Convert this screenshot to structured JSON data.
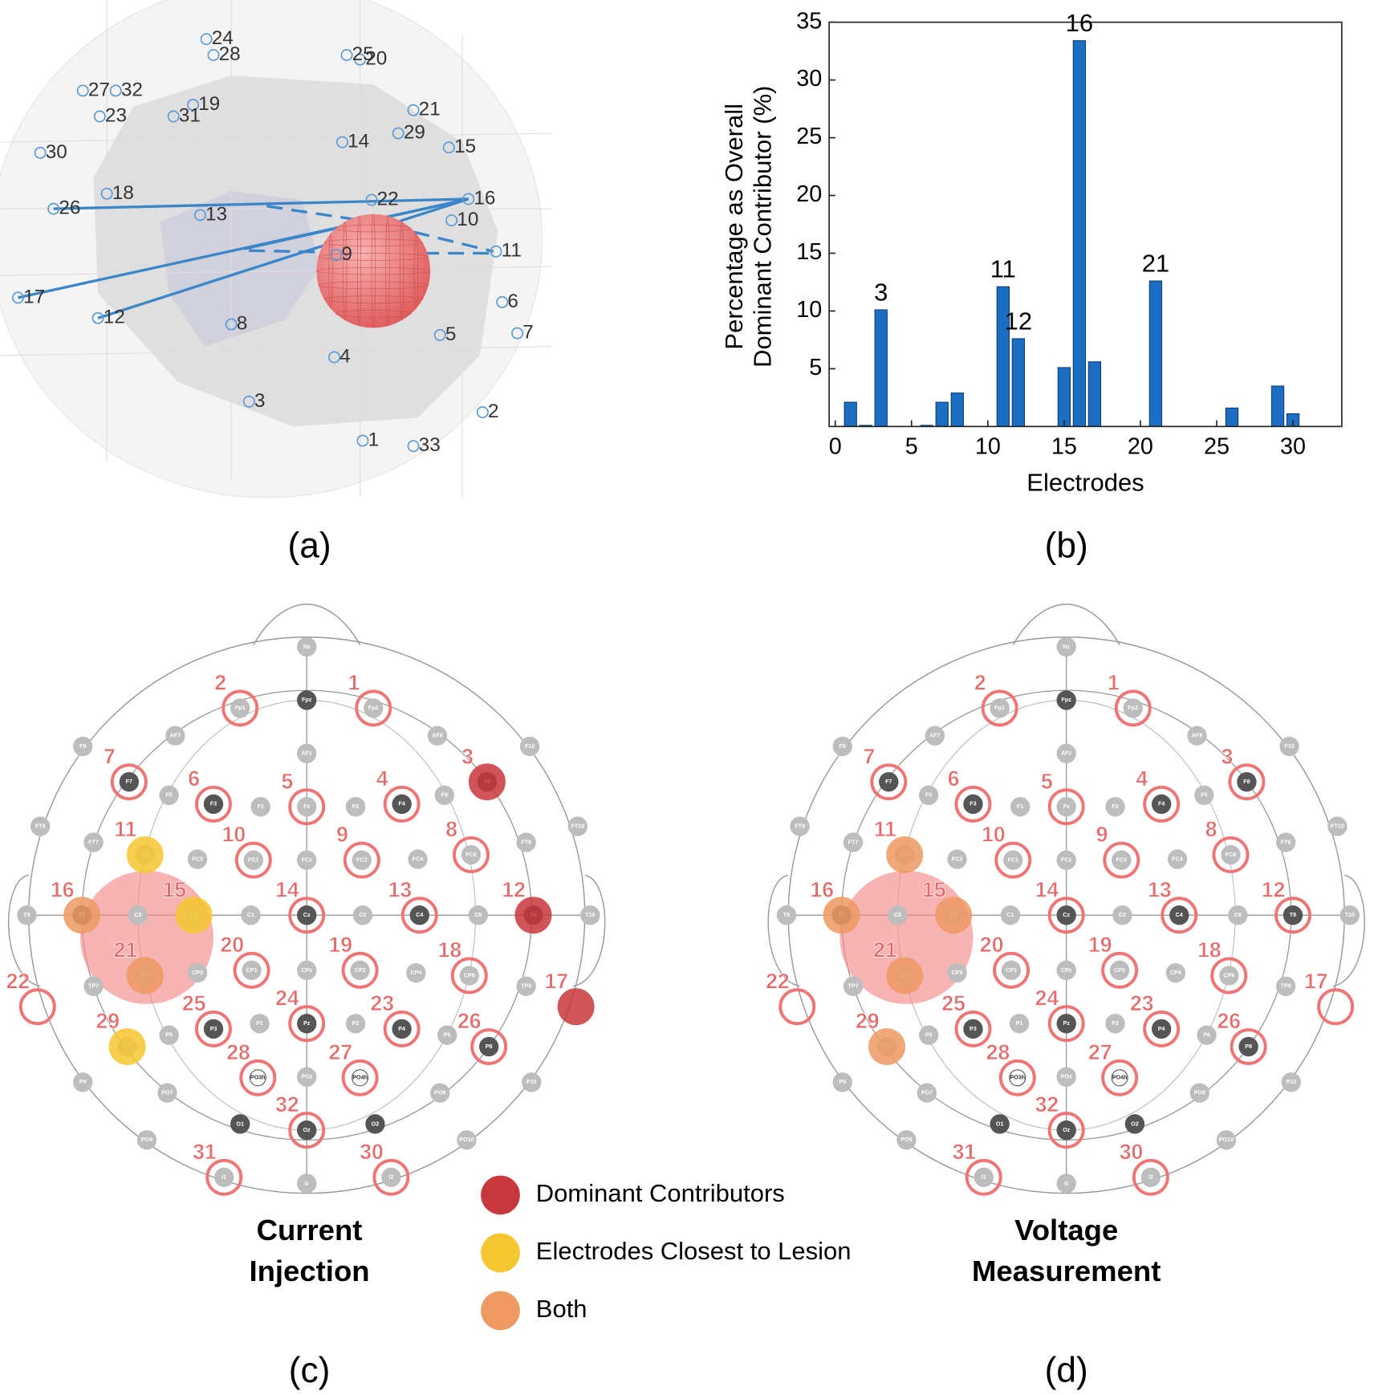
{
  "panel_labels": [
    "(a)",
    "(b)",
    "(c)",
    "(d)"
  ],
  "electrodes": [
    1,
    2,
    3,
    4,
    5,
    6,
    7,
    8,
    9,
    10,
    11,
    12,
    13,
    14,
    15,
    16,
    17,
    18,
    19,
    20,
    21,
    22,
    23,
    24,
    25,
    26,
    27,
    28,
    29,
    30,
    31,
    32,
    33
  ],
  "chart_data": {
    "type": "bar",
    "ylabel": [
      "Percentage as Overall",
      "Dominant Contributor (%)"
    ],
    "xlabel": "Electrodes",
    "x": [
      1,
      2,
      3,
      6,
      7,
      8,
      11,
      12,
      15,
      16,
      17,
      21,
      26,
      29,
      30
    ],
    "values": [
      2.1,
      0.1,
      10.1,
      0.1,
      2.1,
      2.9,
      12.1,
      7.6,
      5.1,
      33.4,
      5.6,
      12.6,
      1.6,
      3.5,
      1.1
    ],
    "color": "#1b6ec2",
    "xlim": [
      -0.4,
      33.2
    ],
    "ylim": [
      0,
      35
    ],
    "xticks": [
      0,
      5,
      10,
      15,
      20,
      25,
      30
    ],
    "yticks": [
      5,
      10,
      15,
      20,
      25,
      30,
      35
    ],
    "annotations": [
      {
        "label": "3",
        "x": 3
      },
      {
        "label": "11",
        "x": 11
      },
      {
        "label": "12",
        "x": 12
      },
      {
        "label": "16",
        "x": 16
      },
      {
        "label": "21",
        "x": 21
      }
    ]
  },
  "eeg_sites": [
    "Nz",
    "Fpz",
    "Fp1",
    "Fp2",
    "AF7",
    "AFz",
    "AF8",
    "F9",
    "F7",
    "F5",
    "F3",
    "F1",
    "Fz",
    "F2",
    "F4",
    "F6",
    "F8",
    "F10",
    "FT9",
    "FT7",
    "FC5",
    "FC3",
    "FC1",
    "FCz",
    "FC2",
    "FC4",
    "FC6",
    "FT8",
    "FT10",
    "T9",
    "T7",
    "C5",
    "C3",
    "C1",
    "Cz",
    "C2",
    "C4",
    "C6",
    "T8",
    "T10",
    "TP7",
    "CP5",
    "CP3",
    "CP1",
    "CPz",
    "CP2",
    "CP4",
    "CP6",
    "TP8",
    "P9",
    "P7",
    "P5",
    "P3",
    "P1",
    "Pz",
    "P2",
    "P4",
    "P6",
    "P8",
    "P10",
    "PO7",
    "PO3h",
    "POz",
    "PO4h",
    "PO8",
    "PO9",
    "O1",
    "Oz",
    "O2",
    "PO10",
    "I1",
    "Iz",
    "I2"
  ],
  "maps": [
    {
      "title": [
        "Current",
        "Injection"
      ],
      "dominant": [
        3,
        12,
        17
      ],
      "closest": [
        11,
        15,
        29
      ],
      "both": [
        16,
        21
      ]
    },
    {
      "title": [
        "Voltage",
        "Measurement"
      ],
      "both": [
        11,
        15,
        16,
        21,
        29
      ]
    }
  ],
  "legend": [
    {
      "label": "Dominant Contributors",
      "color": "#c8373c"
    },
    {
      "label": "Electrodes Closest to Lesion",
      "color": "#f6c630"
    },
    {
      "label": "Both",
      "color": "#ee9a62"
    }
  ]
}
